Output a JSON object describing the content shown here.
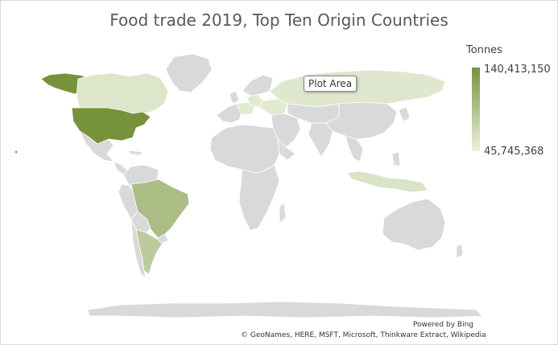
{
  "chart_data": {
    "type": "choropleth-map",
    "title": "Food trade 2019, Top Ten Origin Countries",
    "legend": {
      "title": "Tonnes",
      "max_label": "140,413,150",
      "min_label": "45,745,368",
      "max_value": 140413150,
      "min_value": 45745368,
      "placement": "right"
    },
    "colors": {
      "high": "#76933c",
      "low": "#ebf1de",
      "no_data": "#d9d9d9",
      "border": "#ffffff"
    },
    "regions": [
      {
        "name": "United States",
        "shade": 1.0
      },
      {
        "name": "Brazil",
        "shade": 0.55
      },
      {
        "name": "Argentina",
        "shade": 0.4
      },
      {
        "name": "Canada",
        "shade": 0.12
      },
      {
        "name": "Russia",
        "shade": 0.1
      },
      {
        "name": "Indonesia",
        "shade": 0.15
      },
      {
        "name": "Netherlands",
        "shade": 0.12
      },
      {
        "name": "Germany",
        "shade": 0.08
      },
      {
        "name": "France",
        "shade": 0.08
      },
      {
        "name": "Ukraine",
        "shade": 0.08
      }
    ]
  },
  "tooltip": "Plot Area",
  "attribution": {
    "powered": "Powered by Bing",
    "credits": "© GeoNames, HERE, MSFT, Microsoft, Thinkware Extract, Wikipedia"
  }
}
